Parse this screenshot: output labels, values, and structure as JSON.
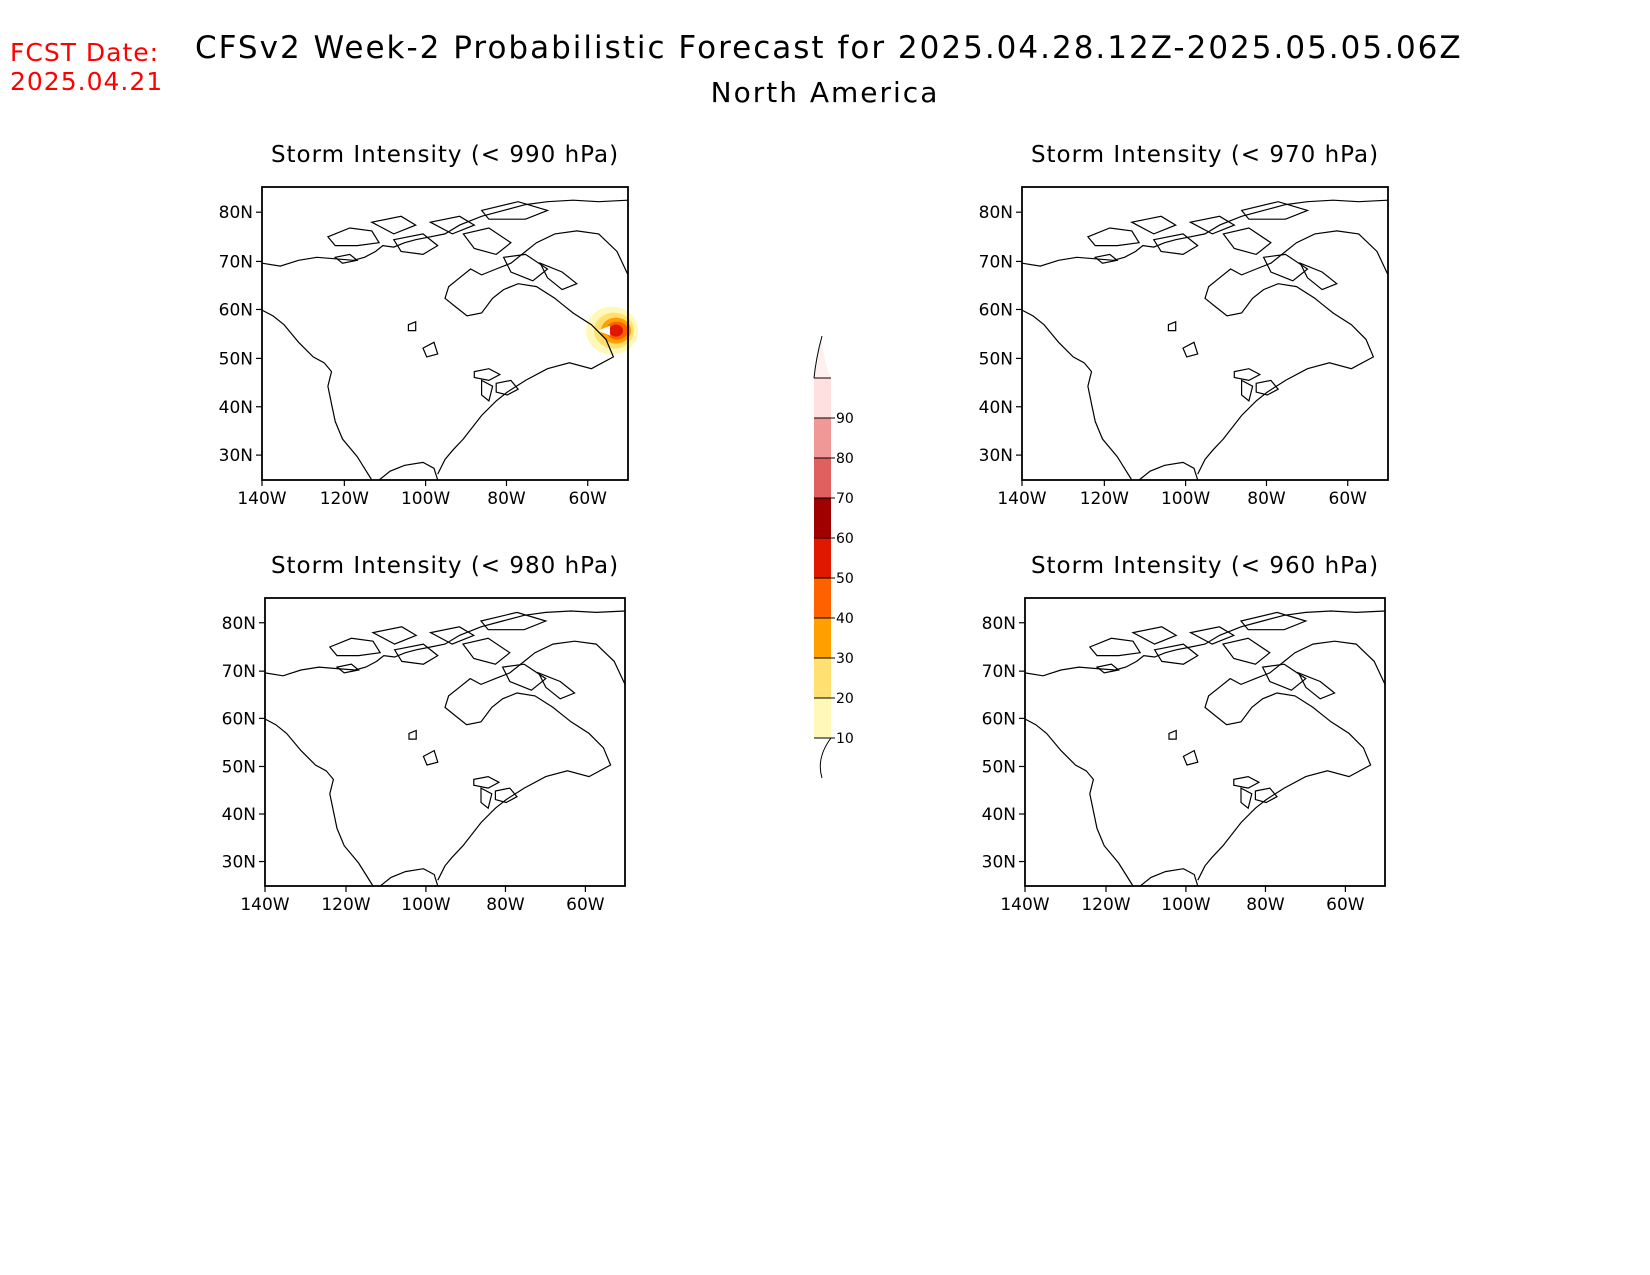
{
  "header": {
    "title": "CFSv2 Week-2 Probabilistic Forecast for 2025.04.28.12Z-2025.05.05.06Z",
    "subtitle": "North America",
    "fcst_label": "FCST Date:",
    "fcst_date": "2025.04.21"
  },
  "panels": [
    {
      "title": "Storm Intensity (< 990 hPa)",
      "has_signal": true,
      "max_probability": 60
    },
    {
      "title": "Storm Intensity (< 970 hPa)",
      "has_signal": false,
      "max_probability": 0
    },
    {
      "title": "Storm Intensity (< 980 hPa)",
      "has_signal": false,
      "max_probability": 0
    },
    {
      "title": "Storm Intensity (< 960 hPa)",
      "has_signal": false,
      "max_probability": 0
    }
  ],
  "axes": {
    "lat_labels": [
      "80N",
      "70N",
      "60N",
      "50N",
      "40N",
      "30N"
    ],
    "lon_labels": [
      "140W",
      "120W",
      "100W",
      "80W",
      "60W"
    ]
  },
  "colorbar": {
    "levels": [
      "10",
      "20",
      "30",
      "40",
      "50",
      "60",
      "70",
      "80",
      "90"
    ],
    "colors": [
      "#fff8b8",
      "#ffe070",
      "#ffa000",
      "#ff6000",
      "#e01800",
      "#a00000",
      "#e06060",
      "#f09898",
      "#ffe0e0",
      "#fff0f0"
    ]
  }
}
